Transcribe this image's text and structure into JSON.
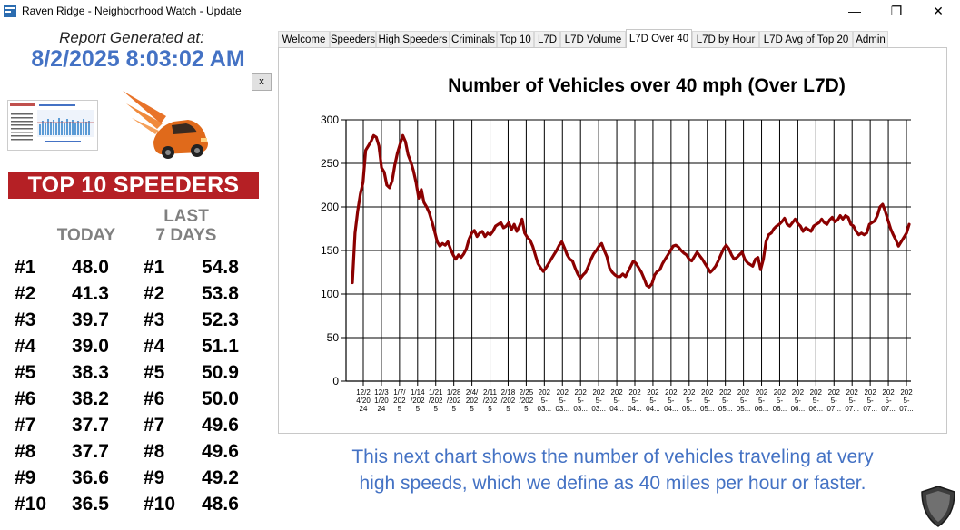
{
  "window": {
    "title": "Raven Ridge - Neighborhood Watch - Update",
    "minimize_glyph": "—",
    "restore_glyph": "❐",
    "close_glyph": "✕"
  },
  "report": {
    "label": "Report Generated at:",
    "datetime": "8/2/2025 8:03:02 AM",
    "close_label": "x"
  },
  "top10": {
    "banner": "TOP 10 SPEEDERS",
    "today_header": "TODAY",
    "last_header_line1": "LAST",
    "last_header_line2": "7 DAYS",
    "rows": [
      {
        "rank_today": "#1",
        "today": "48.0",
        "rank_week": "#1",
        "week": "54.8"
      },
      {
        "rank_today": "#2",
        "today": "41.3",
        "rank_week": "#2",
        "week": "53.8"
      },
      {
        "rank_today": "#3",
        "today": "39.7",
        "rank_week": "#3",
        "week": "52.3"
      },
      {
        "rank_today": "#4",
        "today": "39.0",
        "rank_week": "#4",
        "week": "51.1"
      },
      {
        "rank_today": "#5",
        "today": "38.3",
        "rank_week": "#5",
        "week": "50.9"
      },
      {
        "rank_today": "#6",
        "today": "38.2",
        "rank_week": "#6",
        "week": "50.0"
      },
      {
        "rank_today": "#7",
        "today": "37.7",
        "rank_week": "#7",
        "week": "49.6"
      },
      {
        "rank_today": "#8",
        "today": "37.7",
        "rank_week": "#8",
        "week": "49.6"
      },
      {
        "rank_today": "#9",
        "today": "36.6",
        "rank_week": "#9",
        "week": "49.2"
      },
      {
        "rank_today": "#10",
        "today": "36.5",
        "rank_week": "#10",
        "week": "48.6"
      }
    ]
  },
  "tabs": [
    {
      "label": "Welcome",
      "active": false
    },
    {
      "label": "Speeders",
      "active": false
    },
    {
      "label": "High Speeders",
      "active": false
    },
    {
      "label": "Criminals",
      "active": false
    },
    {
      "label": "Top 10",
      "active": false
    },
    {
      "label": "L7D",
      "active": false
    },
    {
      "label": "L7D Volume",
      "active": false
    },
    {
      "label": "L7D Over 40",
      "active": true
    },
    {
      "label": "L7D by Hour",
      "active": false
    },
    {
      "label": "L7D Avg of Top 20",
      "active": false
    },
    {
      "label": "Admin",
      "active": false
    }
  ],
  "chart_data": {
    "type": "line",
    "title": "Number of Vehicles over 40 mph (Over L7D)",
    "xlabel": "",
    "ylabel": "",
    "ylim": [
      0,
      300
    ],
    "yticks": [
      0,
      50,
      100,
      150,
      200,
      250,
      300
    ],
    "grid": true,
    "legend": "none",
    "line_color": "#8b0000",
    "x_tick_labels": [
      "12/2\n4/20\n24",
      "12/3\n1/20\n24",
      "1/7/\n202\n5",
      "1/14\n/202\n5",
      "1/21\n/202\n5",
      "1/28\n/202\n5",
      "2/4/\n202\n5",
      "2/11\n/202\n5",
      "2/18\n/202\n5",
      "2/25\n/202\n5",
      "202\n5-\n03...",
      "202\n5-\n03...",
      "202\n5-\n03...",
      "202\n5-\n03...",
      "202\n5-\n04...",
      "202\n5-\n04...",
      "202\n5-\n04...",
      "202\n5-\n04...",
      "202\n5-\n05...",
      "202\n5-\n05...",
      "202\n5-\n05...",
      "202\n5-\n05...",
      "202\n5-\n06...",
      "202\n5-\n06...",
      "202\n5-\n06...",
      "202\n5-\n06...",
      "202\n5-\n07...",
      "202\n5-\n07...",
      "202\n5-\n07...",
      "202\n5-\n07...",
      "202\n5-\n07..."
    ],
    "series": [
      {
        "values": [
          113,
          170,
          195,
          215,
          228,
          265,
          270,
          275,
          282,
          280,
          270,
          245,
          240,
          225,
          222,
          230,
          248,
          262,
          272,
          282,
          275,
          260,
          252,
          242,
          228,
          210,
          220,
          205,
          200,
          193,
          183,
          172,
          160,
          155,
          158,
          156,
          160,
          152,
          145,
          140,
          145,
          142,
          146,
          152,
          163,
          170,
          173,
          166,
          170,
          172,
          166,
          170,
          168,
          172,
          178,
          180,
          182,
          176,
          178,
          182,
          174,
          180,
          172,
          178,
          186,
          170,
          165,
          162,
          155,
          145,
          135,
          130,
          126,
          130,
          135,
          140,
          145,
          150,
          156,
          160,
          153,
          145,
          140,
          138,
          130,
          123,
          118,
          122,
          125,
          132,
          140,
          146,
          150,
          155,
          158,
          150,
          143,
          130,
          125,
          122,
          120,
          120,
          123,
          120,
          126,
          132,
          138,
          135,
          130,
          125,
          118,
          110,
          108,
          112,
          122,
          126,
          128,
          135,
          140,
          145,
          150,
          155,
          156,
          154,
          150,
          147,
          145,
          140,
          138,
          143,
          148,
          144,
          140,
          135,
          130,
          125,
          128,
          132,
          138,
          145,
          152,
          156,
          152,
          145,
          140,
          142,
          145,
          148,
          140,
          136,
          134,
          132,
          140,
          142,
          128,
          140,
          160,
          168,
          170,
          175,
          178,
          180,
          183,
          187,
          180,
          178,
          182,
          186,
          181,
          178,
          172,
          176,
          174,
          172,
          178,
          180,
          182,
          186,
          182,
          180,
          185,
          188,
          183,
          185,
          190,
          186,
          190,
          188,
          180,
          178,
          172,
          168,
          170,
          168,
          170,
          180,
          182,
          184,
          190,
          200,
          203,
          195,
          185,
          175,
          168,
          162,
          155,
          160,
          165,
          170,
          180
        ]
      }
    ]
  },
  "caption": {
    "line1": "This next chart shows the number of vehicles traveling at very",
    "line2": "high speeds, which we define as 40 miles per hour or faster."
  },
  "icons": {
    "app": "app-icon",
    "car": "speeding-car-icon",
    "shield": "shield-icon"
  }
}
